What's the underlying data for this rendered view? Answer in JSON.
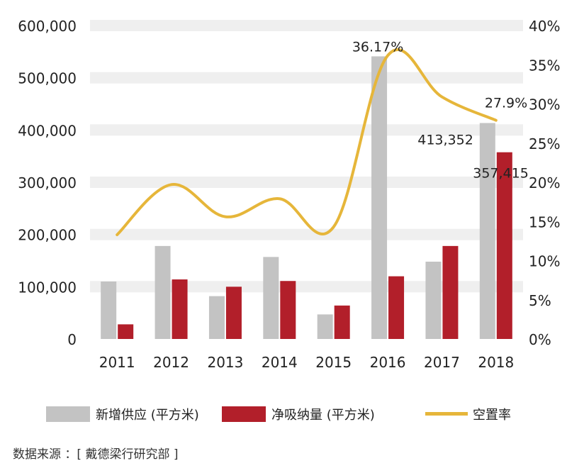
{
  "chart_data": {
    "type": "bar",
    "categories": [
      "2011",
      "2012",
      "2013",
      "2014",
      "2015",
      "2016",
      "2017",
      "2018"
    ],
    "series": [
      {
        "name": "新增供应 (平方米)",
        "type": "bar",
        "axis": "left",
        "color": "#c3c3c3",
        "values": [
          110000,
          178000,
          82000,
          157000,
          47000,
          541000,
          148000,
          413352
        ]
      },
      {
        "name": "净吸纳量 (平方米)",
        "type": "bar",
        "axis": "left",
        "color": "#b21f2a",
        "values": [
          28000,
          114000,
          100000,
          111000,
          64000,
          120000,
          178000,
          357415
        ]
      },
      {
        "name": "空置率",
        "type": "line",
        "axis": "right",
        "color": "#e6b63a",
        "values": [
          13.3,
          19.7,
          15.6,
          17.9,
          14.3,
          36.17,
          30.9,
          27.9
        ]
      }
    ],
    "yleft": {
      "min": 0,
      "max": 600000,
      "ticks": [
        "0",
        "100,000",
        "200,000",
        "300,000",
        "400,000",
        "500,000",
        "600,000"
      ]
    },
    "yright": {
      "min": 0,
      "max": 40,
      "ticks": [
        "0%",
        "5%",
        "10%",
        "15%",
        "20%",
        "25%",
        "30%",
        "35%",
        "40%"
      ]
    },
    "annotations": [
      {
        "text": "36.17%",
        "category": "2016",
        "series": "空置率"
      },
      {
        "text": "27.9%",
        "category": "2018",
        "series": "空置率"
      },
      {
        "text": "413,352",
        "category": "2018",
        "series": "新增供应 (平方米)"
      },
      {
        "text": "357,415",
        "category": "2018",
        "series": "净吸纳量 (平方米)"
      }
    ],
    "grid": true,
    "legend": "bottom"
  },
  "source": "数据来源 ：[ 戴德梁行研究部 ]"
}
